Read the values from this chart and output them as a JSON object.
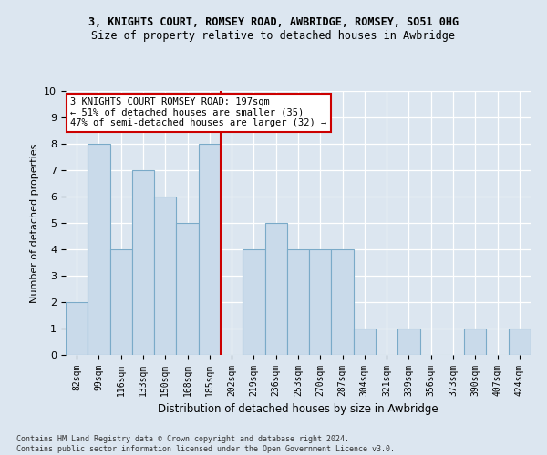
{
  "title": "3, KNIGHTS COURT, ROMSEY ROAD, AWBRIDGE, ROMSEY, SO51 0HG",
  "subtitle": "Size of property relative to detached houses in Awbridge",
  "xlabel": "Distribution of detached houses by size in Awbridge",
  "ylabel": "Number of detached properties",
  "categories": [
    "82sqm",
    "99sqm",
    "116sqm",
    "133sqm",
    "150sqm",
    "168sqm",
    "185sqm",
    "202sqm",
    "219sqm",
    "236sqm",
    "253sqm",
    "270sqm",
    "287sqm",
    "304sqm",
    "321sqm",
    "339sqm",
    "356sqm",
    "373sqm",
    "390sqm",
    "407sqm",
    "424sqm"
  ],
  "values": [
    2,
    8,
    4,
    7,
    6,
    5,
    8,
    0,
    4,
    5,
    4,
    4,
    4,
    1,
    0,
    1,
    0,
    0,
    1,
    0,
    1
  ],
  "bar_color": "#c9daea",
  "bar_edge_color": "#7aaac8",
  "vline_color": "#cc0000",
  "vline_x": 6.5,
  "annotation_text_line1": "3 KNIGHTS COURT ROMSEY ROAD: 197sqm",
  "annotation_text_line2": "← 51% of detached houses are smaller (35)",
  "annotation_text_line3": "47% of semi-detached houses are larger (32) →",
  "annotation_box_color": "white",
  "annotation_box_edge_color": "#cc0000",
  "ylim": [
    0,
    10
  ],
  "yticks": [
    0,
    1,
    2,
    3,
    4,
    5,
    6,
    7,
    8,
    9,
    10
  ],
  "background_color": "#dce6f0",
  "grid_color": "white",
  "footer_line1": "Contains HM Land Registry data © Crown copyright and database right 2024.",
  "footer_line2": "Contains public sector information licensed under the Open Government Licence v3.0.",
  "title_fontsize": 8.5,
  "subtitle_fontsize": 8.5,
  "tick_fontsize": 7,
  "ylabel_fontsize": 8,
  "xlabel_fontsize": 8.5,
  "annotation_fontsize": 7.5,
  "footer_fontsize": 6
}
